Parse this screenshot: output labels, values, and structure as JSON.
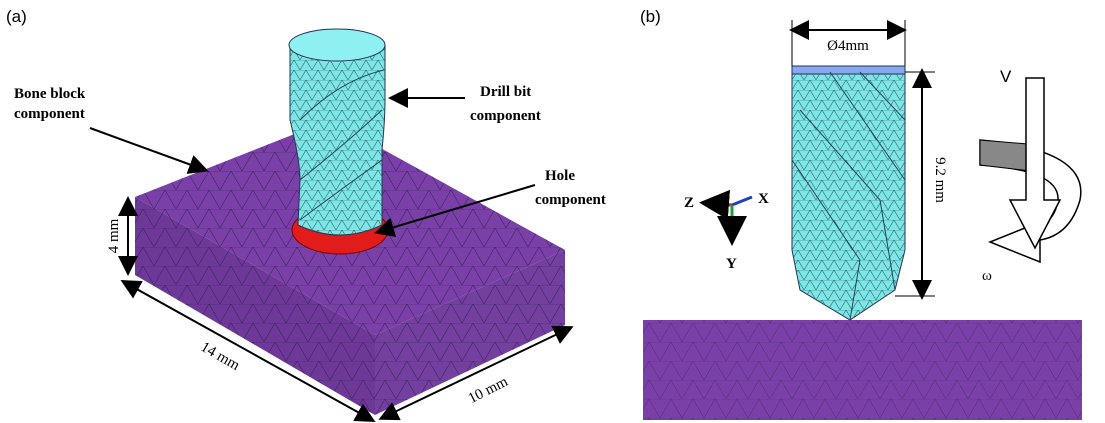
{
  "panel_a": {
    "label": "(a)",
    "bone_block": [
      "Bone block",
      "component"
    ],
    "drill_bit": [
      "Drill bit",
      "component"
    ],
    "hole": [
      "Hole",
      "component"
    ],
    "dimensions": [
      "4 mm",
      "14 mm",
      "10 mm"
    ]
  },
  "panel_b": {
    "label": "(b)",
    "diameter": "Ø4mm",
    "length": "9.2 mm",
    "axes": [
      "Z",
      "X",
      "Y"
    ],
    "velocity": "V",
    "rotation": "ω"
  }
}
